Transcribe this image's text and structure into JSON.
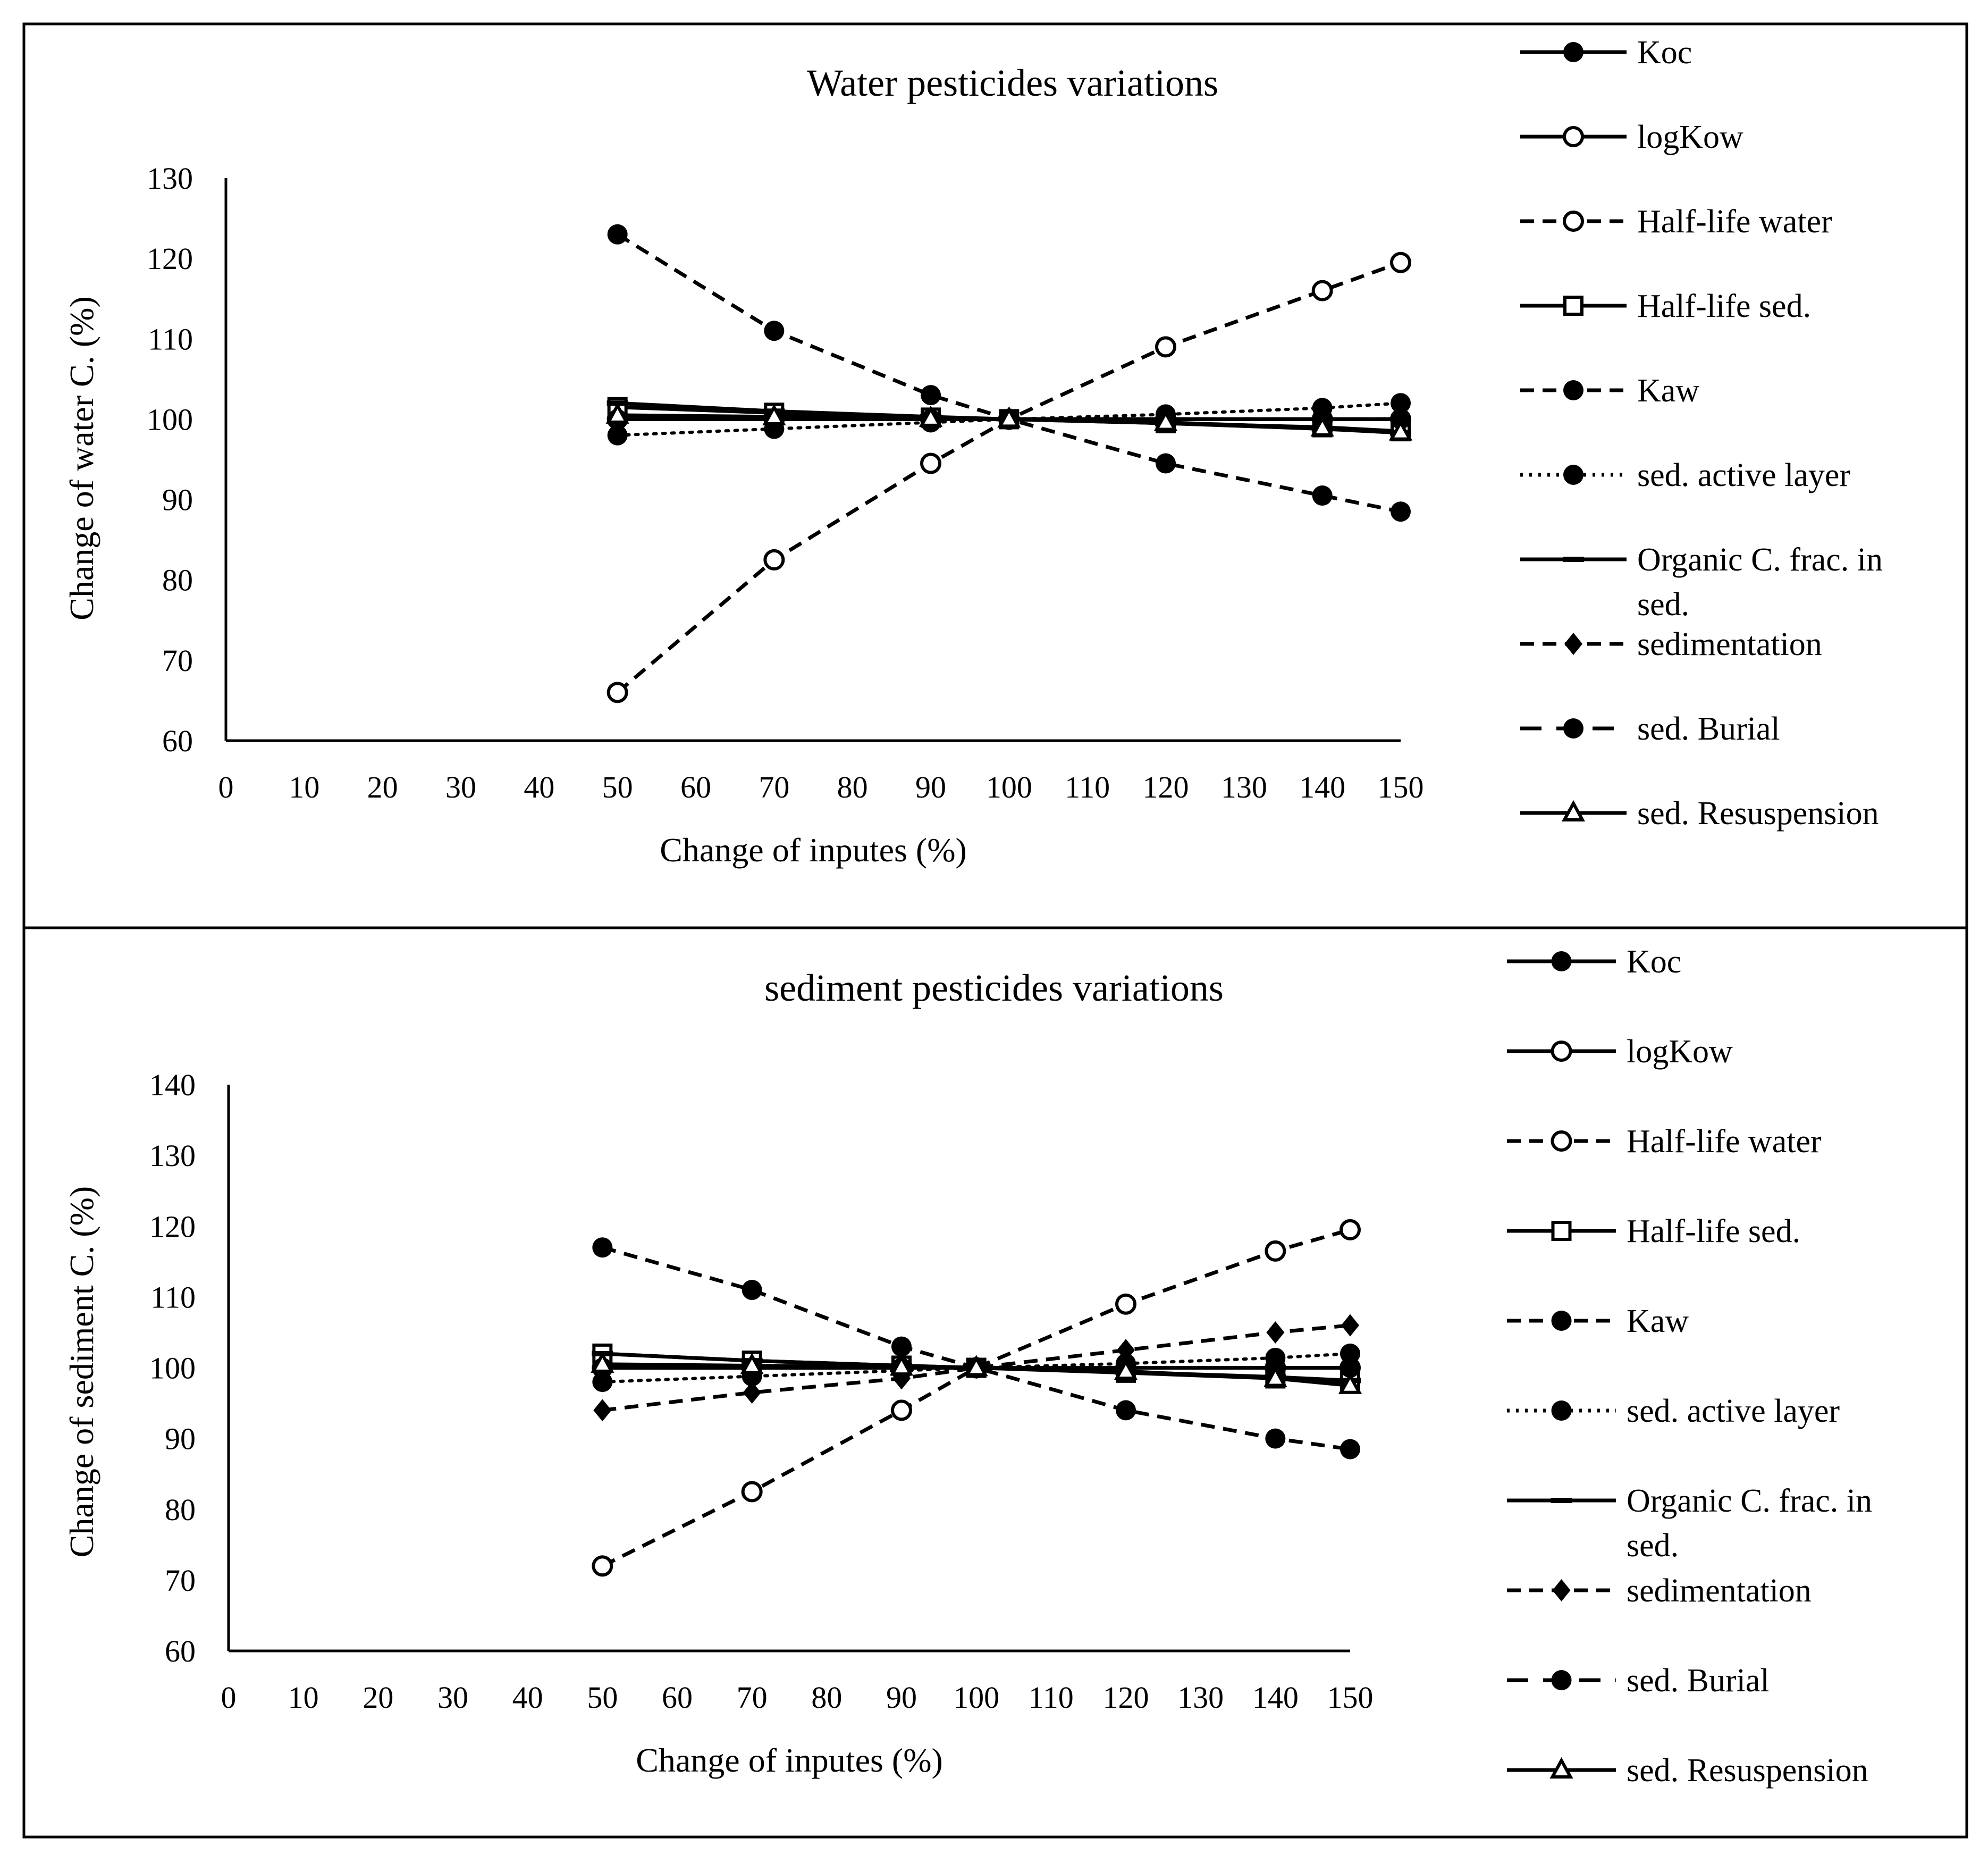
{
  "chart_data": [
    {
      "type": "line",
      "title": "Water pesticides variations",
      "xlabel": "Change of inputes (%)",
      "ylabel": "Change of water C. (%)",
      "xlim": [
        0,
        150
      ],
      "ylim": [
        60,
        130
      ],
      "xticks": [
        0,
        10,
        20,
        30,
        40,
        50,
        60,
        70,
        80,
        90,
        100,
        110,
        120,
        130,
        140,
        150
      ],
      "yticks": [
        60,
        70,
        80,
        90,
        100,
        110,
        120,
        130
      ],
      "x": [
        50,
        70,
        90,
        100,
        120,
        140,
        150
      ],
      "grid": false,
      "legend_position": "right",
      "legend_labels": [
        "Koc",
        "logKow",
        "Half-life water",
        "Half-life sed.",
        "Kaw",
        "sed. active layer",
        "Organic C. frac. in sed.",
        "sedimentation",
        "sed. Burial",
        "sed. Resuspension"
      ],
      "series": [
        {
          "name": "Koc",
          "marker": "circle-filled",
          "dash": "solid",
          "values": [
            100,
            100,
            100,
            100,
            100,
            100,
            100
          ]
        },
        {
          "name": "logKow",
          "marker": "circle-open",
          "dash": "solid",
          "values": [
            100,
            100,
            100,
            100,
            100,
            100,
            100
          ]
        },
        {
          "name": "Half-life water",
          "marker": "circle-open",
          "dash": "dashed",
          "values": [
            66,
            82.5,
            94.5,
            100,
            109,
            116,
            119.5
          ]
        },
        {
          "name": "Half-life sed.",
          "marker": "square-open",
          "dash": "solid",
          "values": [
            101.5,
            100.8,
            100.2,
            100,
            99.5,
            99,
            98.5
          ]
        },
        {
          "name": "Kaw",
          "marker": "circle-filled",
          "dash": "dashed",
          "values": [
            123,
            111,
            103,
            100,
            94.5,
            90.5,
            88.5
          ]
        },
        {
          "name": "sed. active layer",
          "marker": "circle-filled",
          "dash": "dotted",
          "values": [
            98,
            98.8,
            99.6,
            100,
            100.6,
            101.4,
            102
          ]
        },
        {
          "name": "Organic C. frac. in sed.",
          "marker": "dash",
          "dash": "solid",
          "values": [
            102,
            101,
            100.3,
            100,
            99.5,
            98.8,
            98.3
          ]
        },
        {
          "name": "sedimentation",
          "marker": "diamond-filled",
          "dash": "dashed",
          "values": [
            100,
            100,
            100,
            100,
            100,
            100,
            100
          ]
        },
        {
          "name": "sed. Burial",
          "marker": "circle-filled",
          "dash": "long-dash",
          "values": [
            100,
            100,
            100,
            100,
            100,
            100,
            100
          ]
        },
        {
          "name": "sed. Resuspension",
          "marker": "triangle-open",
          "dash": "solid",
          "values": [
            100.5,
            100.3,
            100.1,
            100,
            99.6,
            98.9,
            98.4
          ]
        }
      ]
    },
    {
      "type": "line",
      "title": "sediment pesticides variations",
      "xlabel": "Change of inputes (%)",
      "ylabel": "Change of sediment C. (%)",
      "xlim": [
        0,
        150
      ],
      "ylim": [
        60,
        140
      ],
      "xticks": [
        0,
        10,
        20,
        30,
        40,
        50,
        60,
        70,
        80,
        90,
        100,
        110,
        120,
        130,
        140,
        150
      ],
      "yticks": [
        60,
        70,
        80,
        90,
        100,
        110,
        120,
        130,
        140
      ],
      "x": [
        50,
        70,
        90,
        100,
        120,
        140,
        150
      ],
      "grid": false,
      "legend_position": "right",
      "legend_labels": [
        "Koc",
        "logKow",
        "Half-life water",
        "Half-life sed.",
        "Kaw",
        "sed. active layer",
        "Organic C. frac. in sed.",
        "sedimentation",
        "sed. Burial",
        "sed. Resuspension"
      ],
      "series": [
        {
          "name": "Koc",
          "marker": "circle-filled",
          "dash": "solid",
          "values": [
            100,
            100,
            100,
            100,
            100,
            100,
            100
          ]
        },
        {
          "name": "logKow",
          "marker": "circle-open",
          "dash": "solid",
          "values": [
            100,
            100,
            100,
            100,
            100,
            100,
            100
          ]
        },
        {
          "name": "Half-life water",
          "marker": "circle-open",
          "dash": "dashed",
          "values": [
            72,
            82.5,
            94,
            100,
            109,
            116.5,
            119.5
          ]
        },
        {
          "name": "Half-life sed.",
          "marker": "square-open",
          "dash": "solid",
          "values": [
            102,
            101,
            100.3,
            100,
            99.3,
            98.5,
            98
          ]
        },
        {
          "name": "Kaw",
          "marker": "circle-filled",
          "dash": "dashed",
          "values": [
            117,
            111,
            103,
            100,
            94,
            90,
            88.5
          ]
        },
        {
          "name": "sed. active layer",
          "marker": "circle-filled",
          "dash": "dotted",
          "values": [
            98,
            98.8,
            99.6,
            100,
            100.6,
            101.4,
            102
          ]
        },
        {
          "name": "Organic C. frac. in sed.",
          "marker": "dash",
          "dash": "solid",
          "values": [
            102,
            101,
            100.3,
            100,
            99.4,
            98.7,
            98.2
          ]
        },
        {
          "name": "sedimentation",
          "marker": "diamond-filled",
          "dash": "dashed",
          "values": [
            94,
            96.5,
            98.5,
            100,
            102.5,
            105,
            106
          ]
        },
        {
          "name": "sed. Burial",
          "marker": "circle-filled",
          "dash": "long-dash",
          "values": [
            100,
            100,
            100,
            100,
            100,
            100,
            100
          ]
        },
        {
          "name": "sed. Resuspension",
          "marker": "triangle-open",
          "dash": "solid",
          "values": [
            100.5,
            100.3,
            100.1,
            100,
            99.5,
            98.5,
            97.5
          ]
        }
      ]
    }
  ]
}
